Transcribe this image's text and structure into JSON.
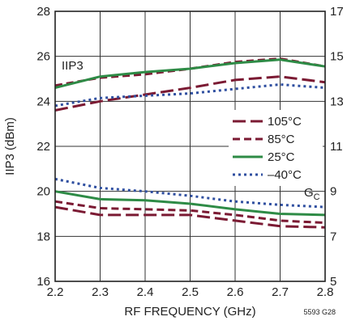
{
  "chart_data": {
    "type": "line",
    "xlabel": "RF FREQUENCY (GHz)",
    "ylabel": "IIP3 (dBm)",
    "xlim": [
      2.2,
      2.8
    ],
    "ylim": [
      16,
      28
    ],
    "y2lim": [
      5,
      17
    ],
    "xticks": [
      "2.2",
      "2.3",
      "2.4",
      "2.5",
      "2.6",
      "2.7",
      "2.8"
    ],
    "yticks": [
      "16",
      "18",
      "20",
      "22",
      "24",
      "26",
      "28"
    ],
    "y2ticks": [
      "5",
      "7",
      "9",
      "11",
      "13",
      "15",
      "17"
    ],
    "grid": true,
    "legend_position": "right",
    "annotations": {
      "iip3": "IIP3",
      "gc_main": "G",
      "gc_sub": "C",
      "figure_code": "5593 G28"
    },
    "series": [
      {
        "name": "105°C",
        "color": "#7b1a33",
        "dash": "long",
        "groups": {
          "iip3": {
            "x": [
              2.2,
              2.3,
              2.4,
              2.5,
              2.6,
              2.7,
              2.8
            ],
            "y": [
              23.6,
              24.0,
              24.3,
              24.6,
              24.95,
              25.1,
              24.85
            ]
          },
          "gc": {
            "x": [
              2.2,
              2.3,
              2.4,
              2.5,
              2.6,
              2.7,
              2.8
            ],
            "y": [
              8.3,
              7.95,
              7.95,
              7.95,
              7.7,
              7.45,
              7.4
            ]
          }
        }
      },
      {
        "name": "85°C",
        "color": "#7b1a33",
        "dash": "short",
        "groups": {
          "iip3": {
            "x": [
              2.2,
              2.3,
              2.4,
              2.5,
              2.6,
              2.7,
              2.8
            ],
            "y": [
              24.7,
              25.05,
              25.2,
              25.45,
              25.75,
              25.9,
              25.55
            ]
          },
          "gc": {
            "x": [
              2.2,
              2.3,
              2.4,
              2.5,
              2.6,
              2.7,
              2.8
            ],
            "y": [
              8.55,
              8.25,
              8.2,
              8.15,
              7.95,
              7.7,
              7.6
            ]
          }
        }
      },
      {
        "name": "25°C",
        "color": "#2e8b46",
        "dash": "solid",
        "groups": {
          "iip3": {
            "x": [
              2.2,
              2.3,
              2.4,
              2.5,
              2.6,
              2.7,
              2.8
            ],
            "y": [
              24.6,
              25.1,
              25.3,
              25.45,
              25.7,
              25.85,
              25.55
            ]
          },
          "gc": {
            "x": [
              2.2,
              2.3,
              2.4,
              2.5,
              2.6,
              2.7,
              2.8
            ],
            "y": [
              9.0,
              8.65,
              8.6,
              8.45,
              8.2,
              8.0,
              7.95
            ]
          }
        }
      },
      {
        "name": "–40°C",
        "color": "#2f4fa0",
        "dash": "dot",
        "groups": {
          "iip3": {
            "x": [
              2.2,
              2.3,
              2.4,
              2.5,
              2.6,
              2.7,
              2.8
            ],
            "y": [
              23.8,
              24.15,
              24.25,
              24.35,
              24.55,
              24.75,
              24.6
            ]
          },
          "gc": {
            "x": [
              2.2,
              2.3,
              2.4,
              2.5,
              2.6,
              2.7,
              2.8
            ],
            "y": [
              9.55,
              9.15,
              9.0,
              8.8,
              8.55,
              8.4,
              8.3
            ]
          }
        }
      }
    ]
  }
}
